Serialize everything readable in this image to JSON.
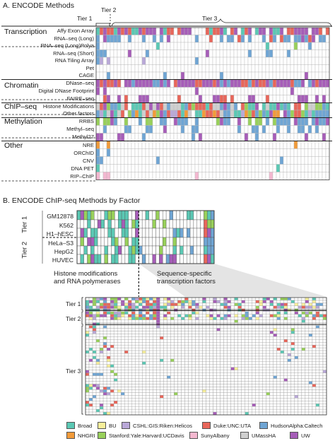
{
  "panel_a": {
    "title": "A. ENCODE Methods",
    "tier1": "Tier 1",
    "tier2": "Tier 2",
    "tier3": "Tier 3",
    "categories": [
      {
        "name": "Transcription",
        "rows": [
          "Affy Exon Array",
          "RNA–seq (Long)",
          "RNA–seq (Long)Polya",
          "RNA–seq (Short)",
          "RNA Tiling Array",
          "Pet",
          "CAGE"
        ]
      },
      {
        "name": "Chromatin",
        "rows": [
          "DNase–seq",
          "Digital DNase Footprint",
          "FAIRE–seq"
        ]
      },
      {
        "name": "ChIP–seq",
        "rows": [
          "Histone Modifications",
          "Other factors"
        ]
      },
      {
        "name": "Methylation",
        "rows": [
          "RRBS",
          "Methyl–seq",
          "Methyl27"
        ]
      },
      {
        "name": "Other",
        "rows": [
          "NRE",
          "ORChID",
          "CNV",
          "DNA PET",
          "RIP–ChIP"
        ]
      }
    ]
  },
  "panel_b": {
    "title": "B. ENCODE ChIP-seq Methods by Factor",
    "tier1": "Tier 1",
    "tier2": "Tier 2",
    "tier3": "Tier 3",
    "cells_tier1": [
      "GM12878",
      "K562",
      "H1–hESC"
    ],
    "cells_tier2": [
      "HeLa–S3",
      "HepG2",
      "HUVEC"
    ],
    "note_left": [
      "Histone modifications",
      "and RNA polymerases"
    ],
    "note_right": [
      "Sequence-specific",
      "transcription factors"
    ]
  },
  "legend": [
    {
      "label": "Broad",
      "color": "#5bc8b4"
    },
    {
      "label": "BU",
      "color": "#f7ef9a"
    },
    {
      "label": "CSHL:GIS:Riken:Helicos",
      "color": "#b9a8d8"
    },
    {
      "label": "Duke:UNC:UTA",
      "color": "#e8665a"
    },
    {
      "label": "HudsonAlpha:Caltech",
      "color": "#6fa5d4"
    },
    {
      "label": "NHGRI",
      "color": "#f29b3a"
    },
    {
      "label": "Stanford:Yale:Harvard:UCDavis",
      "color": "#98d05a"
    },
    {
      "label": "SunyAlbany",
      "color": "#f4b8d0"
    },
    {
      "label": "UMassHA",
      "color": "#cfcfcf"
    },
    {
      "label": "UW",
      "color": "#a65db8"
    }
  ]
}
